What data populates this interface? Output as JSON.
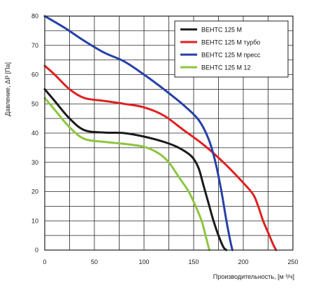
{
  "chart_data": {
    "type": "line",
    "xlabel": "Производительность, [м ³/ч]",
    "ylabel": "Давление, ΔP [Па]",
    "xlim": [
      0,
      250
    ],
    "ylim": [
      0,
      80
    ],
    "x_ticks": [
      "0",
      "50",
      "100",
      "150",
      "200",
      "250"
    ],
    "y_ticks": [
      "0",
      "10",
      "20",
      "30",
      "40",
      "50",
      "60",
      "70",
      "80"
    ],
    "grid": true,
    "legend_position": "top-right",
    "series": [
      {
        "name": "ВЕНТС 125 М",
        "color": "#1a1a1a",
        "points": [
          [
            0,
            55
          ],
          [
            10,
            51
          ],
          [
            25,
            45
          ],
          [
            40,
            41
          ],
          [
            60,
            40.2
          ],
          [
            80,
            40
          ],
          [
            100,
            38.8
          ],
          [
            120,
            37
          ],
          [
            135,
            35
          ],
          [
            148,
            32
          ],
          [
            155,
            28
          ],
          [
            160,
            22
          ],
          [
            165,
            16
          ],
          [
            170,
            10
          ],
          [
            175,
            5
          ],
          [
            180,
            1
          ],
          [
            183,
            0
          ]
        ]
      },
      {
        "name": "ВЕНТС 125 М турбо",
        "color": "#e02020",
        "points": [
          [
            0,
            63
          ],
          [
            10,
            60
          ],
          [
            25,
            55
          ],
          [
            40,
            52
          ],
          [
            60,
            51
          ],
          [
            80,
            50
          ],
          [
            100,
            48.8
          ],
          [
            120,
            46
          ],
          [
            140,
            41
          ],
          [
            160,
            36
          ],
          [
            180,
            30
          ],
          [
            200,
            23
          ],
          [
            210,
            19
          ],
          [
            215,
            15
          ],
          [
            220,
            10
          ],
          [
            225,
            6
          ],
          [
            230,
            2
          ],
          [
            233,
            0
          ]
        ]
      },
      {
        "name": "ВЕНТС 125 М пресс",
        "color": "#2540a8",
        "points": [
          [
            0,
            80
          ],
          [
            20,
            76
          ],
          [
            40,
            71.5
          ],
          [
            60,
            67.5
          ],
          [
            80,
            64.5
          ],
          [
            100,
            60
          ],
          [
            120,
            55
          ],
          [
            140,
            49.5
          ],
          [
            155,
            44.5
          ],
          [
            165,
            38
          ],
          [
            172,
            30
          ],
          [
            178,
            20
          ],
          [
            183,
            10
          ],
          [
            187,
            3
          ],
          [
            189,
            0
          ]
        ]
      },
      {
        "name": "ВЕНТС 125 М  12",
        "color": "#8cc63f",
        "points": [
          [
            0,
            52
          ],
          [
            10,
            48
          ],
          [
            25,
            42
          ],
          [
            40,
            38
          ],
          [
            60,
            37
          ],
          [
            80,
            36.3
          ],
          [
            100,
            35.3
          ],
          [
            115,
            33
          ],
          [
            125,
            30
          ],
          [
            135,
            25
          ],
          [
            145,
            20
          ],
          [
            152,
            15
          ],
          [
            158,
            10
          ],
          [
            162,
            5
          ],
          [
            165,
            1
          ],
          [
            166,
            0
          ]
        ]
      }
    ]
  }
}
